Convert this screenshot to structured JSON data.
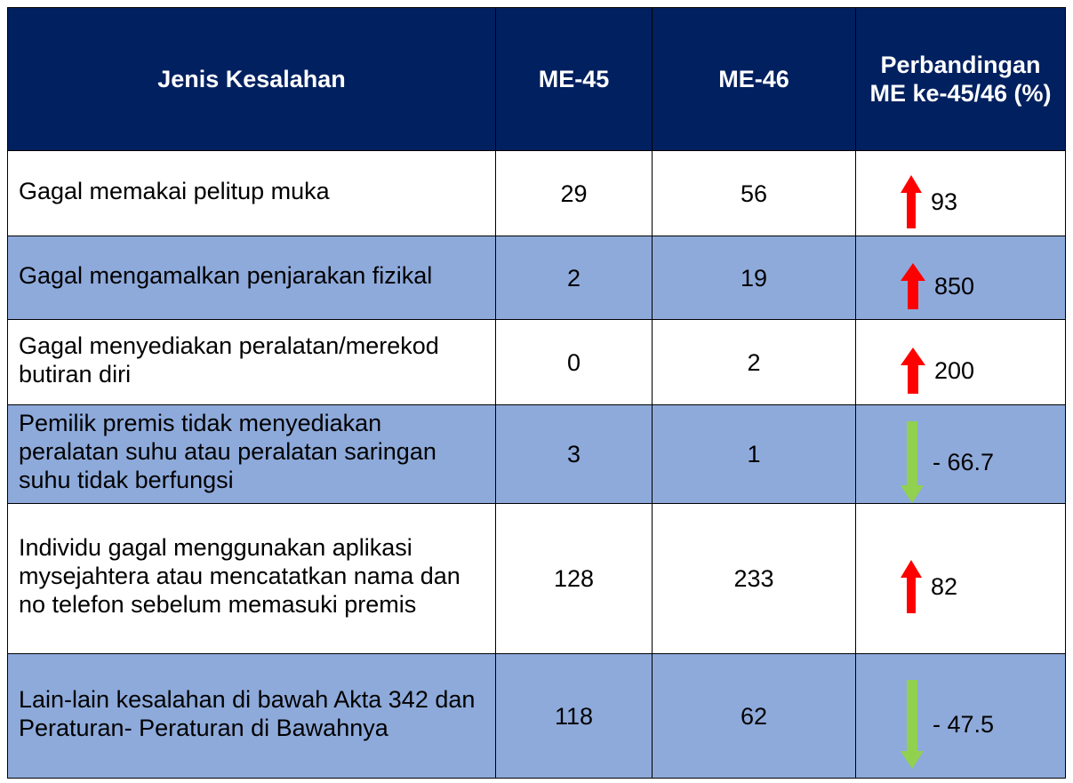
{
  "table": {
    "header": [
      "Jenis Kesalahan",
      "ME-45",
      "ME-46",
      "Perbandingan ME ke-45/46 (%)"
    ],
    "rows": [
      [
        "Gagal memakai pelitup muka",
        29,
        56,
        93
      ],
      [
        "Gagal mengamalkan penjarakan fizikal",
        2,
        19,
        850
      ],
      [
        "Gagal menyediakan peralatan/merekod butiran diri",
        0,
        2,
        200
      ],
      [
        "Pemilik premis tidak menyediakan peralatan suhu atau peralatan saringan suhu tidak berfungsi",
        3,
        1,
        "- 66.7"
      ],
      [
        "Individu gagal menggunakan aplikasi mysejahtera atau mencatatkan nama dan no telefon sebelum memasuki premis",
        128,
        233,
        82
      ],
      [
        "Lain-lain kesalahan di bawah Akta 342 dan Peraturan- Peraturan di Bawahnya",
        118,
        62,
        "- 47.5"
      ]
    ]
  }
}
